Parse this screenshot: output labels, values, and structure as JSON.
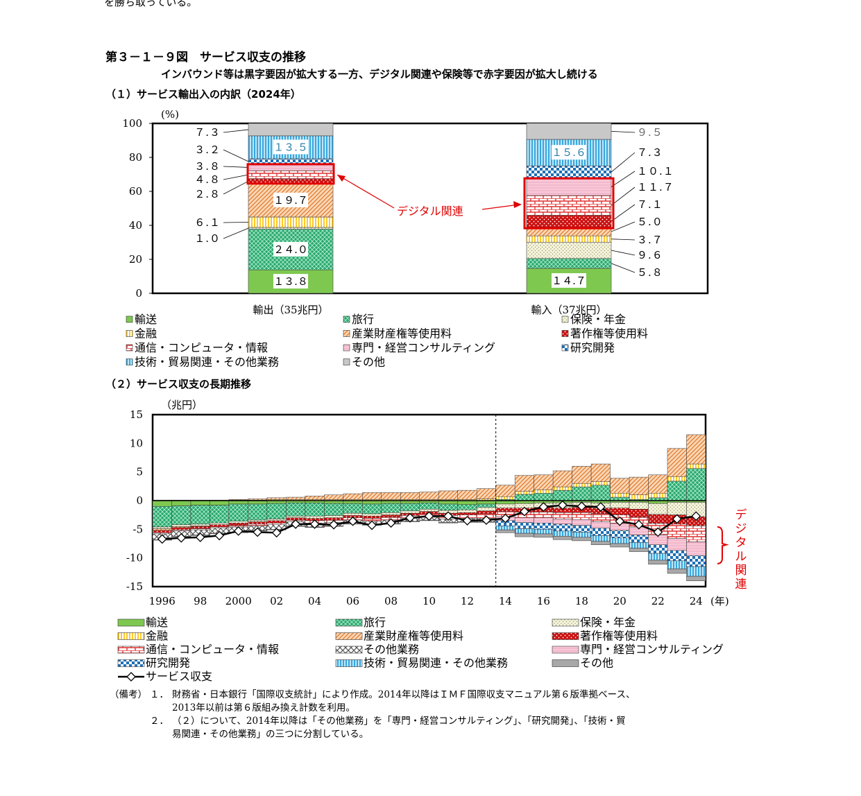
{
  "header": {
    "top_fragment": "を勝ち取っている。",
    "figure_title": "第３－１－９図　サービス収支の推移",
    "subtitle": "インバウンド等は黒字要因が拡大する一方、デジタル関連や保険等で赤字要因が拡大し続ける",
    "section1": "（１）サービス輸出入の内訳（2024年）",
    "section2": "（２）サービス収支の長期推移"
  },
  "chart_data": [
    {
      "type": "bar",
      "stacked": true,
      "title": "（１）サービス輸出入の内訳（2024年）",
      "ylabel": "(%)",
      "ylim": [
        0,
        100
      ],
      "yticks": [
        0,
        20,
        40,
        60,
        80,
        100
      ],
      "categories": [
        "輸出（35兆円）",
        "輸入（37兆円）"
      ],
      "annotation": "デジタル関連",
      "series": [
        {
          "name": "輸送",
          "values": [
            13.8,
            14.7
          ],
          "color": "#7ec850"
        },
        {
          "name": "旅行",
          "values": [
            24.0,
            5.8
          ],
          "color": "#2aa86e"
        },
        {
          "name": "保険・年金",
          "values": [
            1.0,
            9.6
          ],
          "color": "#f4f0d8"
        },
        {
          "name": "金融",
          "values": [
            6.1,
            3.7
          ],
          "color": "#ffd84a"
        },
        {
          "name": "産業財産権等使用料",
          "values": [
            19.7,
            5.0
          ],
          "color": "#f3a868"
        },
        {
          "name": "著作権等使用料",
          "values": [
            2.8,
            7.1
          ],
          "color": "#cc1111"
        },
        {
          "name": "通信・コンピュータ・情報",
          "values": [
            4.8,
            11.7
          ],
          "color": "#e03030"
        },
        {
          "name": "専門・経営コンサルティング",
          "values": [
            3.8,
            10.1
          ],
          "color": "#f8c8d8"
        },
        {
          "name": "研究開発",
          "values": [
            3.2,
            7.3
          ],
          "color": "#1e6fb5"
        },
        {
          "name": "技術・貿易関連・その他業務",
          "values": [
            13.5,
            15.6
          ],
          "color": "#3aa7dd"
        },
        {
          "name": "その他",
          "values": [
            7.3,
            9.5
          ],
          "color": "#c8c8c8"
        }
      ],
      "legend": [
        "輸送",
        "旅行",
        "保険・年金",
        "金融",
        "産業財産権等使用料",
        "著作権等使用料",
        "通信・コンピュータ・情報",
        "専門・経営コンサルティング",
        "研究開発",
        "技術・貿易関連・その他業務",
        "その他"
      ],
      "inside_labels": {
        "輸出": [
          "13.8",
          "24.0",
          "19.7",
          "13.5"
        ],
        "輸入": [
          "14.7",
          "15.6"
        ]
      }
    },
    {
      "type": "bar",
      "stacked": true,
      "title": "（２）サービス収支の長期推移",
      "ylabel": "（兆円）",
      "xlabel": "(年)",
      "ylim": [
        -15,
        15
      ],
      "yticks": [
        -15,
        -10,
        -5,
        0,
        5,
        10,
        15
      ],
      "x": [
        1996,
        1997,
        1998,
        1999,
        2000,
        2001,
        2002,
        2003,
        2004,
        2005,
        2006,
        2007,
        2008,
        2009,
        2010,
        2011,
        2012,
        2013,
        2014,
        2015,
        2016,
        2017,
        2018,
        2019,
        2020,
        2021,
        2022,
        2023,
        2024
      ],
      "xtick_labels": [
        "1996",
        "98",
        "2000",
        "02",
        "04",
        "06",
        "08",
        "10",
        "12",
        "14",
        "16",
        "18",
        "20",
        "22",
        "24"
      ],
      "annotation": "デジタル関連",
      "series": [
        {
          "name": "輸送",
          "color": "#7ec850",
          "values": [
            -1.0,
            -0.9,
            -0.8,
            -0.8,
            -0.6,
            -0.6,
            -0.5,
            -0.4,
            -0.4,
            -0.5,
            -0.5,
            -0.6,
            -0.5,
            -0.5,
            -0.4,
            -0.6,
            -0.7,
            -0.6,
            -0.6,
            -0.5,
            -0.4,
            -0.4,
            -0.3,
            -0.4,
            -0.3,
            -0.3,
            -0.5,
            -0.3,
            -0.3
          ]
        },
        {
          "name": "旅行",
          "color": "#2aa86e",
          "values": [
            -3.6,
            -3.3,
            -3.3,
            -3.1,
            -3.0,
            -2.8,
            -2.7,
            -2.3,
            -2.3,
            -2.1,
            -1.7,
            -1.7,
            -1.6,
            -1.3,
            -1.1,
            -1.1,
            -0.9,
            -0.6,
            0.2,
            1.1,
            1.3,
            1.8,
            2.4,
            2.7,
            0.6,
            0.2,
            0.5,
            3.4,
            5.6
          ]
        },
        {
          "name": "保険・年金",
          "color": "#f4f0d8",
          "values": [
            -0.3,
            -0.3,
            -0.3,
            -0.3,
            -0.3,
            -0.3,
            -0.3,
            -0.3,
            -0.4,
            -0.4,
            -0.4,
            -0.4,
            -0.4,
            -0.4,
            -0.4,
            -0.5,
            -0.5,
            -0.6,
            -0.7,
            -0.8,
            -0.8,
            -0.9,
            -0.9,
            -0.9,
            -1.0,
            -1.2,
            -1.9,
            -2.2,
            -2.5
          ]
        },
        {
          "name": "金融",
          "color": "#ffd84a",
          "values": [
            0.1,
            0.1,
            0.1,
            0.1,
            0.1,
            0.1,
            0.2,
            0.2,
            0.2,
            0.2,
            0.2,
            0.2,
            0.2,
            0.2,
            0.2,
            0.2,
            0.2,
            0.3,
            0.5,
            0.5,
            0.6,
            0.6,
            0.6,
            0.6,
            0.7,
            0.8,
            0.8,
            0.8,
            0.8
          ]
        },
        {
          "name": "産業財産権等使用料",
          "color": "#f3a868",
          "values": [
            -0.3,
            -0.2,
            -0.1,
            0.0,
            0.1,
            0.2,
            0.3,
            0.4,
            0.6,
            0.8,
            1.0,
            1.2,
            1.2,
            1.2,
            1.3,
            1.5,
            1.6,
            1.8,
            2.0,
            2.8,
            2.6,
            2.8,
            3.0,
            3.1,
            2.6,
            3.1,
            3.2,
            4.9,
            5.1
          ]
        },
        {
          "name": "著作権等使用料",
          "color": "#cc1111",
          "values": [
            -0.4,
            -0.4,
            -0.4,
            -0.4,
            -0.4,
            -0.4,
            -0.4,
            -0.4,
            -0.4,
            -0.4,
            -0.4,
            -0.4,
            -0.4,
            -0.4,
            -0.4,
            -0.4,
            -0.4,
            -0.5,
            -0.6,
            -0.7,
            -0.8,
            -0.8,
            -0.9,
            -1.0,
            -1.2,
            -1.4,
            -1.6,
            -1.6,
            -1.6
          ]
        },
        {
          "name": "通信・コンピュータ・情報",
          "color": "#e03030",
          "values": [
            -0.2,
            -0.2,
            -0.2,
            -0.2,
            -0.3,
            -0.3,
            -0.3,
            -0.3,
            -0.4,
            -0.4,
            -0.4,
            -0.5,
            -0.5,
            -0.5,
            -0.6,
            -0.6,
            -0.6,
            -0.8,
            -0.9,
            -1.0,
            -1.0,
            -1.1,
            -1.2,
            -1.4,
            -1.5,
            -1.7,
            -2.0,
            -2.5,
            -2.8
          ]
        },
        {
          "name": "その他業務",
          "color": "#ffffff",
          "values": [
            -1.0,
            -0.9,
            -0.9,
            -0.9,
            -0.9,
            -0.8,
            -0.8,
            -0.7,
            -0.7,
            -0.6,
            -0.6,
            -0.6,
            -0.6,
            -0.5,
            -0.5,
            -0.6,
            -0.6,
            -0.6,
            0,
            0,
            0,
            0,
            0,
            0,
            0,
            0,
            0,
            0,
            0
          ]
        },
        {
          "name": "専門・経営コンサルティング",
          "color": "#f8c8d8",
          "values": [
            0,
            0,
            0,
            0,
            0,
            0,
            0,
            0,
            0,
            0,
            0,
            0,
            0,
            0,
            0,
            0,
            0,
            0,
            -0.7,
            -0.8,
            -0.9,
            -0.9,
            -1.0,
            -1.1,
            -1.2,
            -1.4,
            -1.7,
            -2.1,
            -2.4
          ]
        },
        {
          "name": "研究開発",
          "color": "#1e6fb5",
          "values": [
            0,
            0,
            0,
            0,
            0,
            0,
            0,
            0,
            0,
            0,
            0,
            0,
            0,
            0,
            0,
            0,
            0,
            0,
            -0.9,
            -1.1,
            -1.1,
            -1.2,
            -1.2,
            -1.3,
            -1.3,
            -1.3,
            -1.5,
            -1.8,
            -1.9
          ]
        },
        {
          "name": "技術・貿易関連・その他業務",
          "color": "#3aa7dd",
          "values": [
            0,
            0,
            0,
            0,
            0,
            0,
            0,
            0,
            0,
            0,
            0,
            0,
            0,
            0,
            0,
            0,
            0,
            0,
            -0.7,
            -0.8,
            -0.8,
            -0.9,
            -0.9,
            -1.0,
            -1.0,
            -1.0,
            -1.2,
            -1.4,
            -1.7
          ]
        },
        {
          "name": "その他",
          "color": "#a8a8a8",
          "values": [
            -0.1,
            -0.1,
            -0.1,
            -0.1,
            -0.1,
            -0.1,
            -0.1,
            -0.1,
            -0.1,
            -0.1,
            -0.1,
            -0.1,
            -0.1,
            -0.1,
            -0.1,
            -0.1,
            -0.1,
            -0.1,
            -0.5,
            -0.6,
            -0.6,
            -0.6,
            -0.6,
            -0.6,
            -0.6,
            -0.6,
            -0.7,
            -0.8,
            -0.8
          ]
        }
      ],
      "line": {
        "name": "サービス収支",
        "values": [
          -6.7,
          -6.5,
          -6.4,
          -6.1,
          -5.3,
          -5.5,
          -5.6,
          -4.1,
          -4.1,
          -4.2,
          -3.6,
          -4.3,
          -3.9,
          -3.0,
          -2.7,
          -2.7,
          -3.5,
          -3.4,
          -3.1,
          -1.9,
          -1.1,
          -0.8,
          -1.0,
          -1.1,
          -3.6,
          -4.2,
          -5.5,
          -3.2,
          -2.7
        ]
      },
      "legend": [
        "輸送",
        "旅行",
        "保険・年金",
        "金融",
        "産業財産権等使用料",
        "著作権等使用料",
        "通信・コンピュータ・情報",
        "その他業務",
        "専門・経営コンサルティング",
        "研究開発",
        "技術・貿易関連・その他業務",
        "その他",
        "サービス収支"
      ]
    }
  ],
  "notes": [
    {
      "label": "（備考）",
      "num": "１．",
      "text": "財務省・日本銀行「国際収支統計」により作成。2014年以降はＩＭＦ国際収支マニュアル第６版準拠ベース、"
    },
    {
      "label": "",
      "num": "",
      "text": "2013年以前は第６版組み換え計数を利用。"
    },
    {
      "label": "",
      "num": "２．",
      "text": "（２）について、2014年以降は「その他業務」を「専門・経営コンサルティング」、「研究開発」、「技術・貿"
    },
    {
      "label": "",
      "num": "",
      "text": "易関連・その他業務」の三つに分割している。"
    }
  ]
}
